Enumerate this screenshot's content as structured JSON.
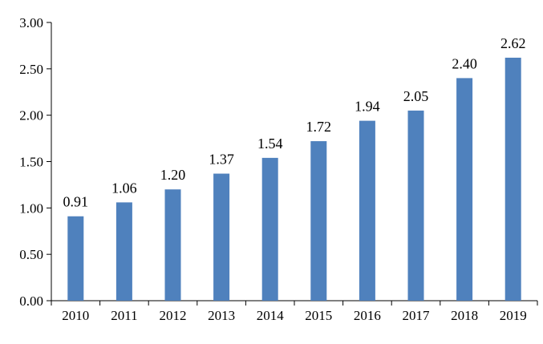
{
  "chart_data": {
    "type": "bar",
    "categories": [
      "2010",
      "2011",
      "2012",
      "2013",
      "2014",
      "2015",
      "2016",
      "2017",
      "2018",
      "2019"
    ],
    "values": [
      0.91,
      1.06,
      1.2,
      1.37,
      1.54,
      1.72,
      1.94,
      2.05,
      2.4,
      2.62
    ],
    "data_labels": [
      "0.91",
      "1.06",
      "1.20",
      "1.37",
      "1.54",
      "1.72",
      "1.94",
      "2.05",
      "2.40",
      "2.62"
    ],
    "y_ticks": [
      0,
      0.5,
      1.0,
      1.5,
      2.0,
      2.5,
      3.0
    ],
    "y_tick_labels": [
      "0.00",
      "0.50",
      "1.00",
      "1.50",
      "2.00",
      "2.50",
      "3.00"
    ],
    "ylim": [
      0,
      3.0
    ],
    "title": "",
    "xlabel": "",
    "ylabel": "",
    "grid": false,
    "legend": "none",
    "bar_color": "#4f81bd",
    "axis_color": "#000000"
  }
}
